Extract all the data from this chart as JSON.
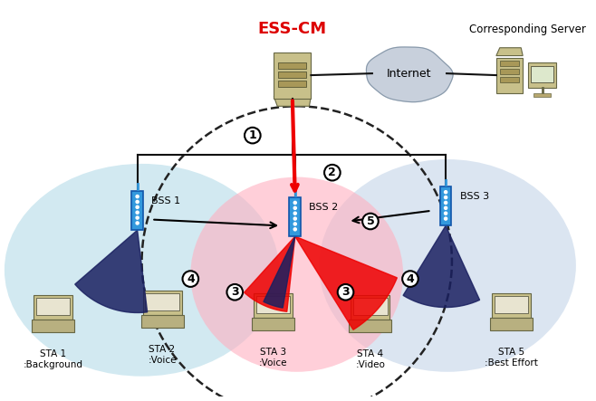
{
  "bg_color": "#ffffff",
  "ess_cm_label": "ESS-CM",
  "ess_cm_color": "#dd0000",
  "internet_label": "Internet",
  "corresponding_label": "Corresponding Server",
  "bss_labels": [
    "BSS 1",
    "BSS 2",
    "BSS 3"
  ],
  "sta_labels": [
    "STA 1\n:Background",
    "STA 2\n:Voice",
    "STA 3\n:Voice",
    "STA 4\n:Video",
    "STA 5\n:Best Effort"
  ],
  "bss1_fill": "#add8e6",
  "bss2_fill": "#ffb0c0",
  "bss3_fill": "#b8cce4",
  "server_color": "#c8c08a",
  "ap_body_color": "#3399dd",
  "ap_edge_color": "#1155aa",
  "cloud_color": "#c8d0dc",
  "wire_color": "#111111",
  "red_color": "#ee0000",
  "navy_color": "#1a2060",
  "dashed_color": "#222222"
}
